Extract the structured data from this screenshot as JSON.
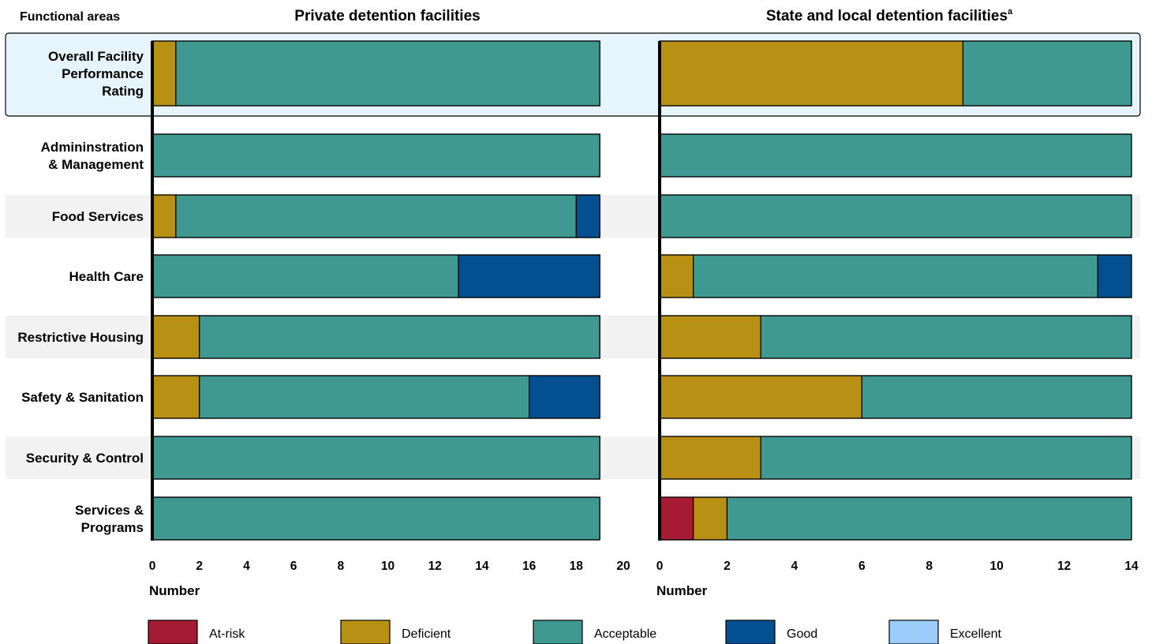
{
  "header": {
    "functional_areas_label": "Functional areas"
  },
  "colors": {
    "At-risk": "#a61b34",
    "Deficient": "#b89014",
    "Acceptable": "#409990",
    "Good": "#034f8f",
    "Excellent": "#9ccdfa",
    "highlight_fill": "#e5f4fd",
    "stripe_fill": "#f2f2f2"
  },
  "legend": [
    "At-risk",
    "Deficient",
    "Acceptable",
    "Good",
    "Excellent"
  ],
  "chart_data": [
    {
      "type": "bar",
      "orientation": "horizontal",
      "stacked": true,
      "title": "Private detention facilities",
      "xlabel": "Number",
      "xlim": [
        0,
        20
      ],
      "xticks": [
        0,
        2,
        4,
        6,
        8,
        10,
        12,
        14,
        16,
        18,
        20
      ],
      "categories": [
        [
          "Overall Facility",
          "Performance",
          "Rating"
        ],
        [
          "Admininstration",
          "& Management"
        ],
        [
          "Food Services"
        ],
        [
          "Health Care"
        ],
        [
          "Restrictive Housing"
        ],
        [
          "Safety & Sanitation"
        ],
        [
          "Security & Control"
        ],
        [
          "Services &",
          "Programs"
        ]
      ],
      "series": [
        {
          "name": "At-risk",
          "values": [
            0,
            0,
            0,
            0,
            0,
            0,
            0,
            0
          ]
        },
        {
          "name": "Deficient",
          "values": [
            1,
            0,
            1,
            0,
            2,
            2,
            0,
            0
          ]
        },
        {
          "name": "Acceptable",
          "values": [
            18,
            19,
            17,
            13,
            17,
            14,
            19,
            19
          ]
        },
        {
          "name": "Good",
          "values": [
            0,
            0,
            1,
            6,
            0,
            3,
            0,
            0
          ]
        },
        {
          "name": "Excellent",
          "values": [
            0,
            0,
            0,
            0,
            0,
            0,
            0,
            0
          ]
        }
      ]
    },
    {
      "type": "bar",
      "orientation": "horizontal",
      "stacked": true,
      "title": "State and local detention facilities",
      "title_footnote": "a",
      "xlabel": "Number",
      "xlim": [
        0,
        14
      ],
      "xticks": [
        0,
        2,
        4,
        6,
        8,
        10,
        12,
        14
      ],
      "categories": [
        [
          "Overall Facility",
          "Performance",
          "Rating"
        ],
        [
          "Admininstration",
          "& Management"
        ],
        [
          "Food Services"
        ],
        [
          "Health Care"
        ],
        [
          "Restrictive Housing"
        ],
        [
          "Safety & Sanitation"
        ],
        [
          "Security & Control"
        ],
        [
          "Services &",
          "Programs"
        ]
      ],
      "series": [
        {
          "name": "At-risk",
          "values": [
            0,
            0,
            0,
            0,
            0,
            0,
            0,
            1
          ]
        },
        {
          "name": "Deficient",
          "values": [
            9,
            0,
            0,
            1,
            3,
            6,
            3,
            1
          ]
        },
        {
          "name": "Acceptable",
          "values": [
            5,
            14,
            14,
            12,
            11,
            8,
            11,
            12
          ]
        },
        {
          "name": "Good",
          "values": [
            0,
            0,
            0,
            1,
            0,
            0,
            0,
            0
          ]
        },
        {
          "name": "Excellent",
          "values": [
            0,
            0,
            0,
            0,
            0,
            0,
            0,
            0
          ]
        }
      ]
    }
  ]
}
